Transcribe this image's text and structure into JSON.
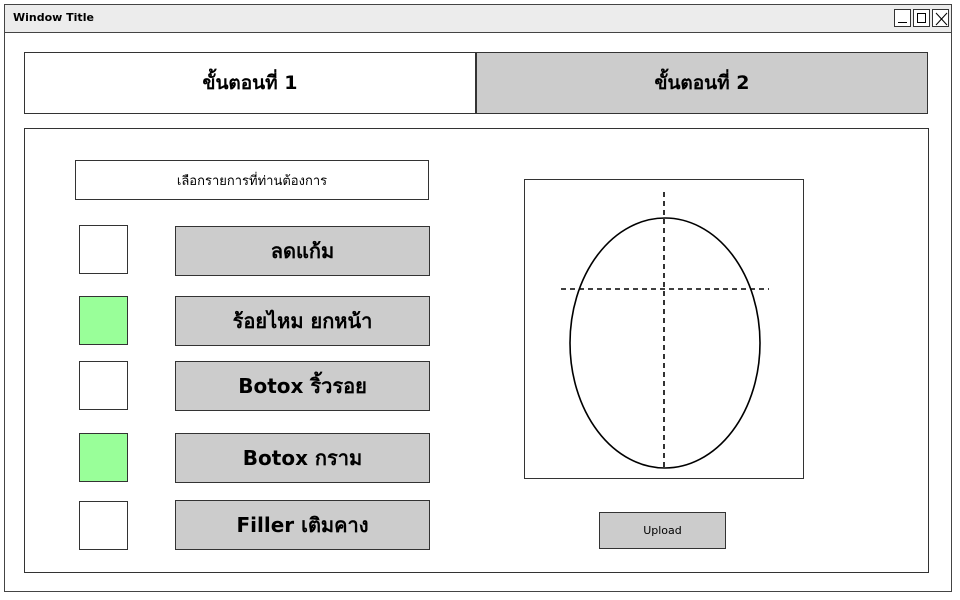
{
  "window": {
    "title": "Window Title",
    "controls": [
      "minimize-icon",
      "maximize-icon",
      "close-icon"
    ]
  },
  "steps": [
    {
      "label": "ขั้นตอนที่ 1",
      "active": true
    },
    {
      "label": "ขั้นตอนที่ 2",
      "active": false
    }
  ],
  "prompt": "เลือกรายการที่ท่านต้องการ",
  "options": [
    {
      "label": "ลดแก้ม",
      "checked": false
    },
    {
      "label": "ร้อยไหม ยกหน้า",
      "checked": true
    },
    {
      "label": "Botox ริ้วรอย",
      "checked": false
    },
    {
      "label": "Botox กราม",
      "checked": true
    },
    {
      "label": "Filler เติมคาง",
      "checked": false
    }
  ],
  "upload_label": "Upload",
  "colors": {
    "checked": "#99ff99",
    "button_fill": "#cccccc",
    "titlebar": "#ececec"
  }
}
